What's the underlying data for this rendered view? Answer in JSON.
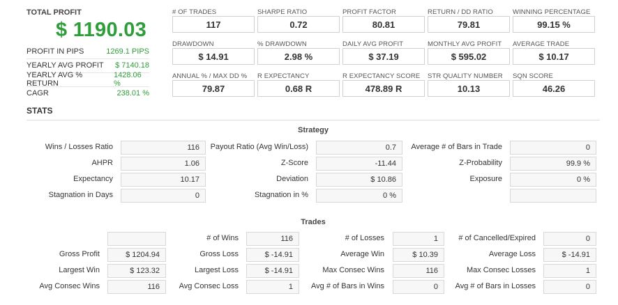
{
  "summary": {
    "total_profit_label": "TOTAL PROFIT",
    "total_profit_value": "$ 1190.03",
    "rows": [
      {
        "label": "PROFIT IN PIPS",
        "value": "1269.1 PIPS"
      },
      {
        "label": "YEARLY AVG PROFIT",
        "value": "$ 7140.18"
      },
      {
        "label": "YEARLY AVG % RETURN",
        "value": "1428.06 %"
      },
      {
        "label": "CAGR",
        "value": "238.01 %"
      }
    ]
  },
  "metrics": [
    {
      "label": "# OF TRADES",
      "value": "117"
    },
    {
      "label": "SHARPE RATIO",
      "value": "0.72"
    },
    {
      "label": "PROFIT FACTOR",
      "value": "80.81"
    },
    {
      "label": "RETURN / DD RATIO",
      "value": "79.81"
    },
    {
      "label": "WINNING PERCENTAGE",
      "value": "99.15 %"
    },
    {
      "label": "DRAWDOWN",
      "value": "$ 14.91"
    },
    {
      "label": "% DRAWDOWN",
      "value": "2.98 %"
    },
    {
      "label": "DAILY AVG PROFIT",
      "value": "$ 37.19"
    },
    {
      "label": "MONTHLY AVG PROFIT",
      "value": "$ 595.02"
    },
    {
      "label": "AVERAGE TRADE",
      "value": "$ 10.17"
    },
    {
      "label": "ANNUAL % / MAX DD %",
      "value": "79.87"
    },
    {
      "label": "R EXPECTANCY",
      "value": "0.68 R"
    },
    {
      "label": "R EXPECTANCY SCORE",
      "value": "478.89 R"
    },
    {
      "label": "STR QUALITY NUMBER",
      "value": "10.13"
    },
    {
      "label": "SQN SCORE",
      "value": "46.26"
    }
  ],
  "stats_title": "STATS",
  "strategy": {
    "title": "Strategy",
    "rows": [
      [
        {
          "label": "Wins / Losses Ratio",
          "value": "116"
        },
        {
          "label": "Payout Ratio (Avg Win/Loss)",
          "value": "0.7"
        },
        {
          "label": "Average # of Bars in Trade",
          "value": "0"
        }
      ],
      [
        {
          "label": "AHPR",
          "value": "1.06"
        },
        {
          "label": "Z-Score",
          "value": "-11.44"
        },
        {
          "label": "Z-Probability",
          "value": "99.9 %"
        }
      ],
      [
        {
          "label": "Expectancy",
          "value": "10.17"
        },
        {
          "label": "Deviation",
          "value": "$ 10.86"
        },
        {
          "label": "Exposure",
          "value": "0 %"
        }
      ],
      [
        {
          "label": "Stagnation in Days",
          "value": "0"
        },
        {
          "label": "Stagnation in %",
          "value": "0 %"
        },
        {
          "label": "",
          "value": ""
        }
      ]
    ]
  },
  "trades": {
    "title": "Trades",
    "rows": [
      [
        {
          "label": "",
          "value": ""
        },
        {
          "label": "# of Wins",
          "value": "116"
        },
        {
          "label": "# of Losses",
          "value": "1"
        },
        {
          "label": "# of Cancelled/Expired",
          "value": "0"
        }
      ],
      [
        {
          "label": "Gross Profit",
          "value": "$ 1204.94"
        },
        {
          "label": "Gross Loss",
          "value": "$ -14.91"
        },
        {
          "label": "Average Win",
          "value": "$ 10.39"
        },
        {
          "label": "Average Loss",
          "value": "$ -14.91"
        }
      ],
      [
        {
          "label": "Largest Win",
          "value": "$ 123.32"
        },
        {
          "label": "Largest Loss",
          "value": "$ -14.91"
        },
        {
          "label": "Max Consec Wins",
          "value": "116"
        },
        {
          "label": "Max Consec Losses",
          "value": "1"
        }
      ],
      [
        {
          "label": "Avg Consec Wins",
          "value": "116"
        },
        {
          "label": "Avg Consec Loss",
          "value": "1"
        },
        {
          "label": "Avg # of Bars in Wins",
          "value": "0"
        },
        {
          "label": "Avg # of Bars in Losses",
          "value": "0"
        }
      ]
    ]
  }
}
